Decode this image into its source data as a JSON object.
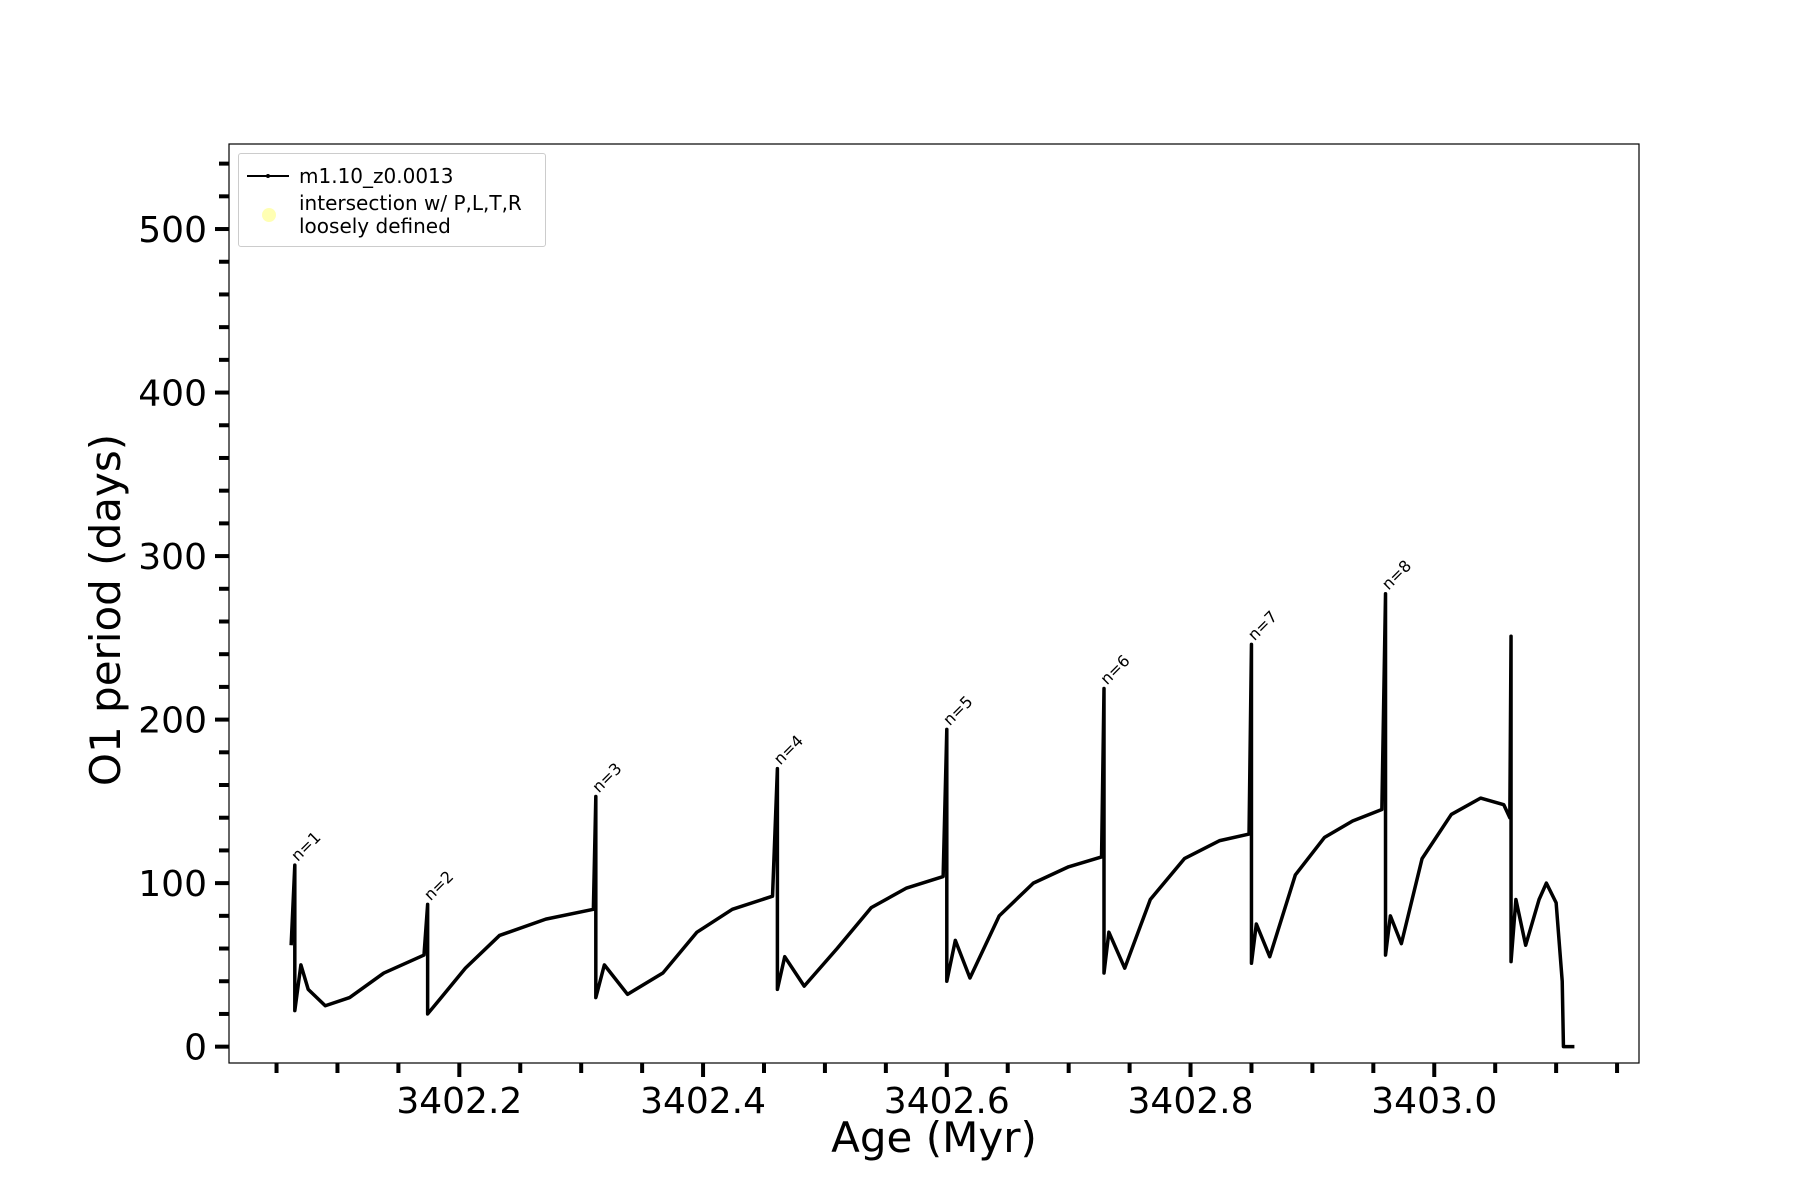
{
  "chart_data": {
    "type": "line",
    "xlabel": "Age (Myr)",
    "ylabel": "O1 period (days)",
    "xlim": [
      3402.011,
      3403.168
    ],
    "ylim": [
      -10,
      552
    ],
    "xticks": [
      {
        "value": 3402.2,
        "label": "3402.2"
      },
      {
        "value": 3402.4,
        "label": "3402.4"
      },
      {
        "value": 3402.6,
        "label": "3402.6"
      },
      {
        "value": 3402.8,
        "label": "3402.8"
      },
      {
        "value": 3403.0,
        "label": "3403.0"
      }
    ],
    "xminorticks": [
      3402.05,
      3402.1,
      3402.15,
      3402.25,
      3402.3,
      3402.35,
      3402.45,
      3402.5,
      3402.55,
      3402.65,
      3402.7,
      3402.75,
      3402.85,
      3402.9,
      3402.95,
      3403.05,
      3403.1,
      3403.15
    ],
    "yticks": [
      0,
      100,
      200,
      300,
      400,
      500
    ],
    "yminorticks": [
      20,
      40,
      60,
      80,
      120,
      140,
      160,
      180,
      220,
      240,
      260,
      280,
      320,
      340,
      360,
      380,
      420,
      440,
      460,
      480,
      520,
      540
    ],
    "legend": "upper left",
    "series": [
      {
        "name": "m1.10_z0.0013",
        "color": "#000000",
        "x": [
          3402.062,
          3402.065,
          3402.065,
          3402.07,
          3402.076,
          3402.09,
          3402.11,
          3402.138,
          3402.171,
          3402.174,
          3402.174,
          3402.184,
          3402.205,
          3402.233,
          3402.271,
          3402.31,
          3402.312,
          3402.312,
          3402.319,
          3402.338,
          3402.367,
          3402.395,
          3402.424,
          3402.457,
          3402.461,
          3402.461,
          3402.467,
          3402.483,
          3402.51,
          3402.538,
          3402.567,
          3402.597,
          3402.6,
          3402.6,
          3402.607,
          3402.619,
          3402.643,
          3402.671,
          3402.7,
          3402.727,
          3402.729,
          3402.729,
          3402.733,
          3402.746,
          3402.767,
          3402.795,
          3402.824,
          3402.848,
          3402.85,
          3402.85,
          3402.854,
          3402.865,
          3402.886,
          3402.91,
          3402.933,
          3402.957,
          3402.96,
          3402.96,
          3402.964,
          3402.973,
          3402.99,
          3403.014,
          3403.038,
          3403.057,
          3403.062,
          3403.063,
          3403.063,
          3403.067,
          3403.075,
          3403.086,
          3403.092,
          3403.1,
          3403.105,
          3403.106,
          3403.115
        ],
        "values": [
          62,
          111,
          22,
          50,
          35,
          25,
          30,
          45,
          56,
          87,
          20,
          29,
          48,
          68,
          78,
          84,
          153,
          30,
          50,
          32,
          45,
          70,
          84,
          92,
          170,
          35,
          55,
          37,
          60,
          85,
          97,
          104,
          194,
          40,
          65,
          42,
          80,
          100,
          110,
          116,
          219,
          45,
          70,
          48,
          90,
          115,
          126,
          130,
          246,
          51,
          75,
          55,
          105,
          128,
          138,
          145,
          277,
          56,
          80,
          63,
          115,
          142,
          152,
          148,
          140,
          251,
          52,
          90,
          62,
          90,
          100,
          88,
          40,
          0,
          0
        ]
      },
      {
        "name": "intersection w/ P,L,T,R\nloosely defined",
        "color": "#ffffb3",
        "marker": "circle",
        "x": [],
        "values": []
      }
    ],
    "annotations": [
      {
        "text": "n=1",
        "x": 3402.065,
        "y": 111
      },
      {
        "text": "n=2",
        "x": 3402.174,
        "y": 87
      },
      {
        "text": "n=3",
        "x": 3402.312,
        "y": 153
      },
      {
        "text": "n=4",
        "x": 3402.461,
        "y": 170
      },
      {
        "text": "n=5",
        "x": 3402.6,
        "y": 194
      },
      {
        "text": "n=6",
        "x": 3402.729,
        "y": 219
      },
      {
        "text": "n=7",
        "x": 3402.85,
        "y": 246
      },
      {
        "text": "n=8",
        "x": 3402.96,
        "y": 277
      }
    ]
  }
}
